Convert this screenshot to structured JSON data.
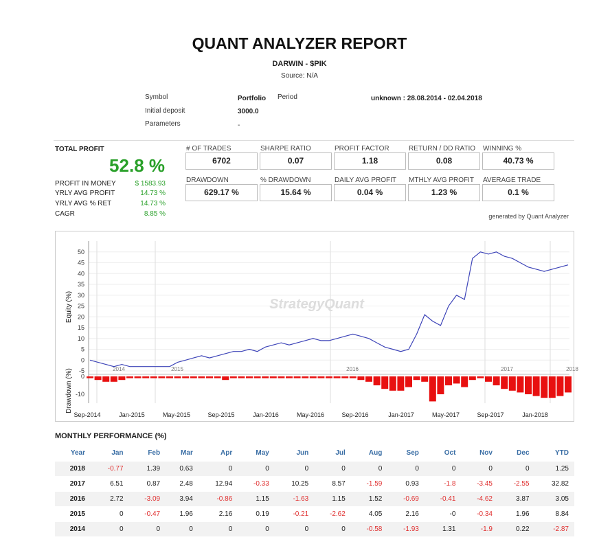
{
  "report": {
    "title": "QUANT ANALYZER REPORT",
    "subtitle": "DARWIN - $PIK",
    "source": "Source: N/A"
  },
  "info": {
    "symbol_label": "Symbol",
    "symbol_value": "Portfolio",
    "period_label": "Period",
    "period_value": "unknown : 28.08.2014 - 02.04.2018",
    "deposit_label": "Initial deposit",
    "deposit_value": "3000.0",
    "params_label": "Parameters",
    "params_value": "-"
  },
  "total_profit": {
    "label": "TOTAL PROFIT",
    "value": "52.8 %",
    "rows": [
      {
        "label": "PROFIT IN MONEY",
        "value": "$ 1583.93"
      },
      {
        "label": "YRLY AVG PROFIT",
        "value": "14.73 %"
      },
      {
        "label": "YRLY AVG % RET",
        "value": "14.73 %"
      },
      {
        "label": "CAGR",
        "value": "8.85 %"
      }
    ]
  },
  "metrics": [
    {
      "label": "# OF TRADES",
      "value": "6702"
    },
    {
      "label": "SHARPE RATIO",
      "value": "0.07"
    },
    {
      "label": "PROFIT FACTOR",
      "value": "1.18"
    },
    {
      "label": "RETURN / DD RATIO",
      "value": "0.08"
    },
    {
      "label": "WINNING %",
      "value": "40.73 %"
    },
    {
      "label": "DRAWDOWN",
      "value": "629.17 %"
    },
    {
      "label": "% DRAWDOWN",
      "value": "15.64 %"
    },
    {
      "label": "DAILY AVG PROFIT",
      "value": "0.04 %"
    },
    {
      "label": "MTHLY AVG PROFIT",
      "value": "1.23 %"
    },
    {
      "label": "AVERAGE TRADE",
      "value": "0.1 %"
    }
  ],
  "generated_by": "generated by Quant Analyzer",
  "chart_data": {
    "type": "line",
    "watermark": "StrategyQuant",
    "ylabel": "Equity (%)",
    "ylabel2": "Drawdown (%)",
    "ylim": [
      -5,
      55
    ],
    "yticks": [
      "50",
      "45",
      "40",
      "35",
      "30",
      "25",
      "20",
      "15",
      "10",
      "5",
      "0",
      "-5"
    ],
    "dd_ticks": [
      "0",
      "-10"
    ],
    "year_labels": [
      "2014",
      "2015",
      "2016",
      "2017",
      "2018"
    ],
    "xticks": [
      "Sep-2014",
      "Jan-2015",
      "May-2015",
      "Sep-2015",
      "Jan-2016",
      "May-2016",
      "Sep-2016",
      "Jan-2017",
      "May-2017",
      "Sep-2017",
      "Jan-2018"
    ],
    "series": [
      {
        "values": [
          0,
          -1,
          -2,
          -3,
          -2,
          -3,
          -3,
          -3,
          -3,
          -3,
          -3,
          -1,
          0,
          1,
          2,
          1,
          2,
          3,
          4,
          4,
          5,
          4,
          6,
          7,
          8,
          7,
          8,
          9,
          10,
          9,
          9,
          10,
          11,
          12,
          11,
          10,
          8,
          6,
          5,
          4,
          5,
          12,
          21,
          18,
          16,
          25,
          30,
          28,
          47,
          50,
          49,
          50,
          48,
          47,
          45,
          43,
          42,
          41,
          42,
          43,
          44
        ]
      }
    ],
    "drawdown": [
      -1,
      -2,
      -3,
      -3,
      -2,
      -1,
      -1,
      -1,
      -1,
      -1,
      -1,
      -1,
      -1,
      -1,
      -1,
      -1,
      -1,
      -2,
      -1,
      -1,
      -1,
      -1,
      -1,
      -1,
      -1,
      -1,
      -1,
      -1,
      -1,
      -1,
      -1,
      -1,
      -1,
      -1,
      -2,
      -3,
      -5,
      -7,
      -8,
      -8,
      -6,
      -2,
      -3,
      -14,
      -10,
      -5,
      -4,
      -6,
      -2,
      -1,
      -3,
      -5,
      -7,
      -8,
      -9,
      -10,
      -11,
      -12,
      -12,
      -11,
      -9
    ]
  },
  "monthly": {
    "title": "MONTHLY PERFORMANCE (%)",
    "headers": [
      "Year",
      "Jan",
      "Feb",
      "Mar",
      "Apr",
      "May",
      "Jun",
      "Jul",
      "Aug",
      "Sep",
      "Oct",
      "Nov",
      "Dec",
      "YTD"
    ],
    "rows": [
      [
        "2018",
        "-0.77",
        "1.39",
        "0.63",
        "0",
        "0",
        "0",
        "0",
        "0",
        "0",
        "0",
        "0",
        "0",
        "1.25"
      ],
      [
        "2017",
        "6.51",
        "0.87",
        "2.48",
        "12.94",
        "-0.33",
        "10.25",
        "8.57",
        "-1.59",
        "0.93",
        "-1.8",
        "-3.45",
        "-2.55",
        "32.82"
      ],
      [
        "2016",
        "2.72",
        "-3.09",
        "3.94",
        "-0.86",
        "1.15",
        "-1.63",
        "1.15",
        "1.52",
        "-0.69",
        "-0.41",
        "-4.62",
        "3.87",
        "3.05"
      ],
      [
        "2015",
        "0",
        "-0.47",
        "1.96",
        "2.16",
        "0.19",
        "-0.21",
        "-2.62",
        "4.05",
        "2.16",
        "-0",
        "-0.34",
        "1.96",
        "8.84"
      ],
      [
        "2014",
        "0",
        "0",
        "0",
        "0",
        "0",
        "0",
        "0",
        "-0.58",
        "-1.93",
        "1.31",
        "-1.9",
        "0.22",
        "-2.87"
      ]
    ]
  }
}
